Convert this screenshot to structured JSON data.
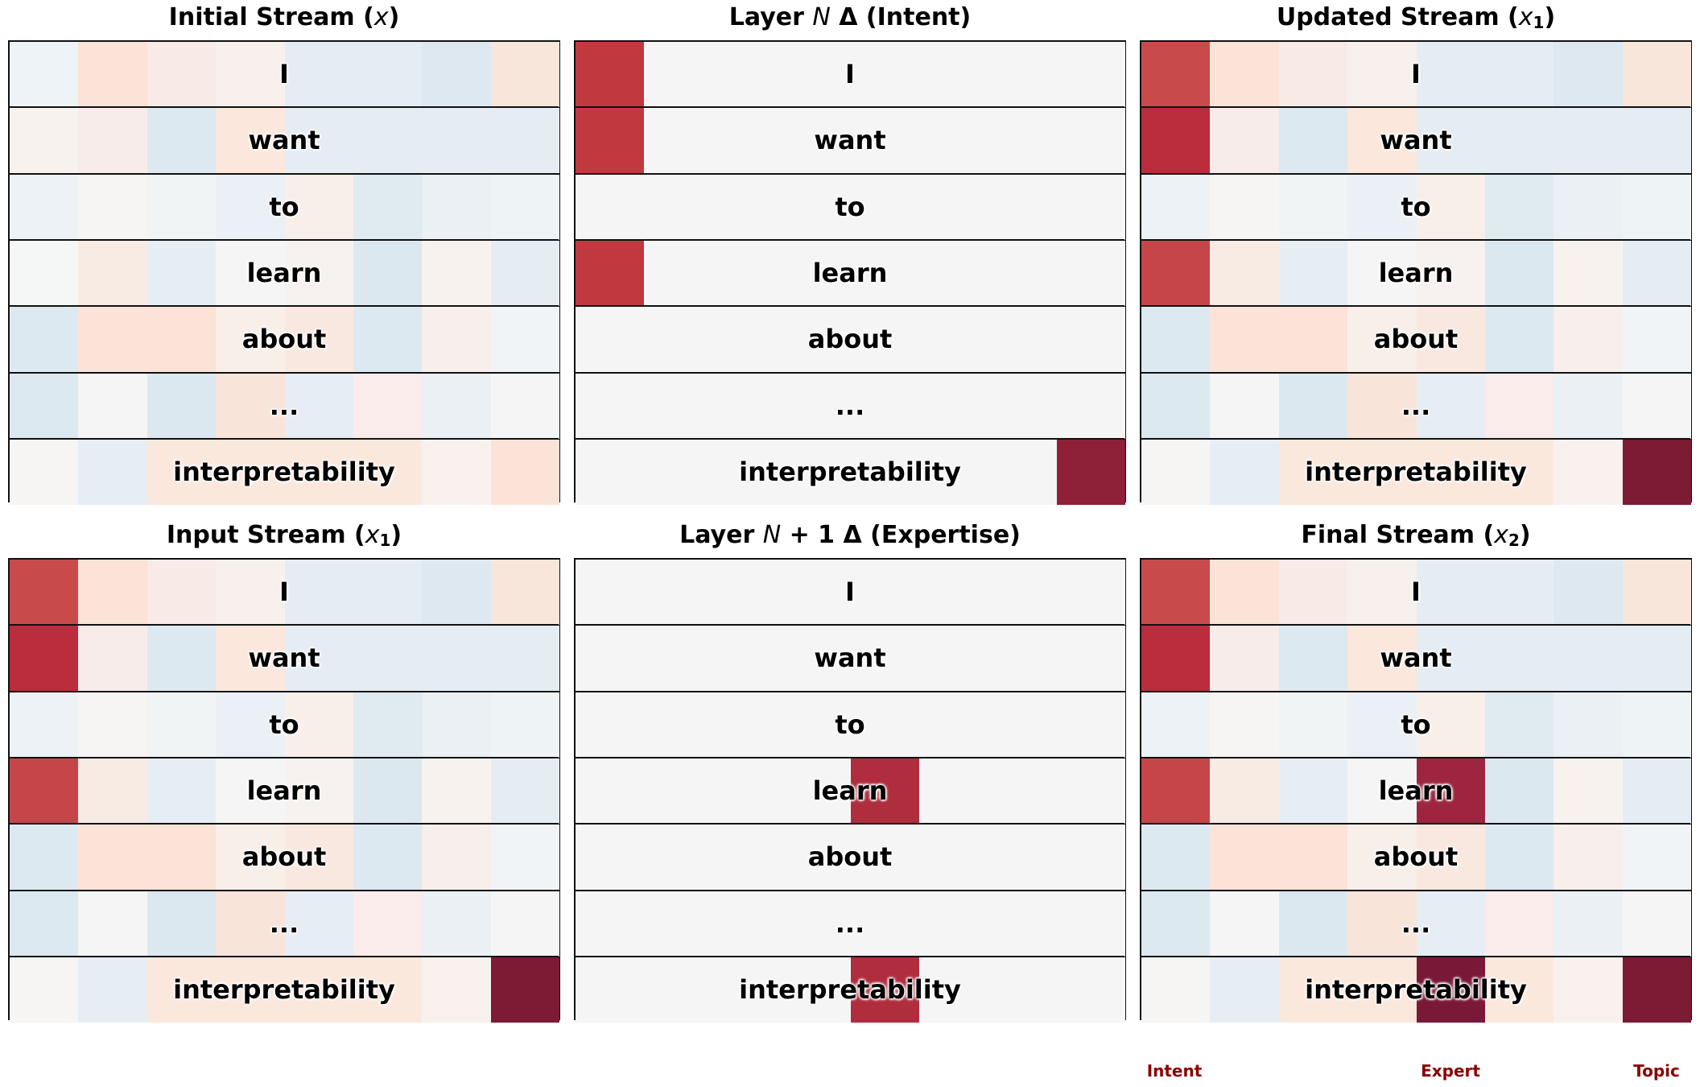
{
  "tokens": [
    "I",
    "want",
    "to",
    "learn",
    "about",
    "...",
    "interpretability"
  ],
  "panels": [
    {
      "id": "initial",
      "title_text": "Initial Stream (",
      "title_var": "x",
      "title_sub": "",
      "title_end": ")",
      "cells": [
        [
          "#eef3f7",
          "#fbe3d7",
          "#f8ebe7",
          "#f8f0ec",
          "#e5edf4",
          "#e5edf4",
          "#dde8f0",
          "#f9e6da"
        ],
        [
          "#f8f2ef",
          "#f8ecea",
          "#dde9f0",
          "#fbe7db",
          "#e5edf4",
          "#e5edf4",
          "#e5edf4",
          "#e5edf4"
        ],
        [
          "#edf2f6",
          "#f6f5f3",
          "#f1f4f5",
          "#eaf0f5",
          "#f8efe9",
          "#e0eaf1",
          "#eaf0f4",
          "#eef3f6"
        ],
        [
          "#f5f6f6",
          "#f8ebe4",
          "#e6eef5",
          "#f5f5f5",
          "#f7f2ef",
          "#dbe8f0",
          "#f8f2ef",
          "#e5edf4"
        ],
        [
          "#dde9f0",
          "#fbe3d7",
          "#fbe3d7",
          "#f8efe9",
          "#f9e8df",
          "#dde9f0",
          "#f8eeeb",
          "#f1f4f6"
        ],
        [
          "#dde9f0",
          "#f5f5f5",
          "#dbe8f0",
          "#f9e4da",
          "#e6edf5",
          "#f9ecea",
          "#eaf0f4",
          "#f5f5f5"
        ],
        [
          "#f6f5f4",
          "#e6edf5",
          "#fbe8dd",
          "#fbe8dd",
          "#fbe8dd",
          "#fbe8dd",
          "#f9f1ee",
          "#fbe3d7"
        ]
      ]
    },
    {
      "id": "layerN",
      "title_text": "Layer ",
      "title_var": "N",
      "title_sub": "",
      "title_end": " Δ (Intent)",
      "cells": [
        [
          "#c0393f",
          "#f5f5f5",
          "#f5f5f5",
          "#f5f5f5",
          "#f5f5f5",
          "#f5f5f5",
          "#f5f5f5",
          "#f5f5f5"
        ],
        [
          "#c0393f",
          "#f5f5f5",
          "#f5f5f5",
          "#f5f5f5",
          "#f5f5f5",
          "#f5f5f5",
          "#f5f5f5",
          "#f5f5f5"
        ],
        [
          "#f5f5f5",
          "#f5f5f5",
          "#f5f5f5",
          "#f5f5f5",
          "#f5f5f5",
          "#f5f5f5",
          "#f5f5f5",
          "#f5f5f5"
        ],
        [
          "#c0393f",
          "#f5f5f5",
          "#f5f5f5",
          "#f5f5f5",
          "#f5f5f5",
          "#f5f5f5",
          "#f5f5f5",
          "#f5f5f5"
        ],
        [
          "#f5f5f5",
          "#f5f5f5",
          "#f5f5f5",
          "#f5f5f5",
          "#f5f5f5",
          "#f5f5f5",
          "#f5f5f5",
          "#f5f5f5"
        ],
        [
          "#f5f5f5",
          "#f5f5f5",
          "#f5f5f5",
          "#f5f5f5",
          "#f5f5f5",
          "#f5f5f5",
          "#f5f5f5",
          "#f5f5f5"
        ],
        [
          "#f5f5f5",
          "#f5f5f5",
          "#f5f5f5",
          "#f5f5f5",
          "#f5f5f5",
          "#f5f5f5",
          "#f5f5f5",
          "#8e2038"
        ]
      ]
    },
    {
      "id": "updated",
      "title_text": "Updated Stream (",
      "title_var": "x",
      "title_sub": "1",
      "title_end": ")",
      "cells": [
        [
          "#c84a4a",
          "#fbe3d7",
          "#f8ebe7",
          "#f8f0ec",
          "#e5edf4",
          "#e5edf4",
          "#dde8f0",
          "#f9e6da"
        ],
        [
          "#bb2c3c",
          "#f8ecea",
          "#dde9f0",
          "#fbe7db",
          "#e5edf4",
          "#e5edf4",
          "#e5edf4",
          "#e5edf4"
        ],
        [
          "#edf2f6",
          "#f6f5f3",
          "#f1f4f5",
          "#eaf0f5",
          "#f8efe9",
          "#e0eaf1",
          "#eaf0f4",
          "#eef3f6"
        ],
        [
          "#c64548",
          "#f8ebe4",
          "#e6eef5",
          "#f5f5f5",
          "#f7f2ef",
          "#dbe8f0",
          "#f8f2ef",
          "#e5edf4"
        ],
        [
          "#dde9f0",
          "#fbe3d7",
          "#fbe3d7",
          "#f8efe9",
          "#f9e8df",
          "#dde9f0",
          "#f8eeeb",
          "#f1f4f6"
        ],
        [
          "#dde9f0",
          "#f5f5f5",
          "#dbe8f0",
          "#f9e4da",
          "#e6edf5",
          "#f9ecea",
          "#eaf0f4",
          "#f5f5f5"
        ],
        [
          "#f6f5f4",
          "#e6edf5",
          "#fbe8dd",
          "#fbe8dd",
          "#fbe8dd",
          "#fbe8dd",
          "#f9f1ee",
          "#7d1a34"
        ]
      ]
    },
    {
      "id": "input",
      "title_text": "Input Stream (",
      "title_var": "x",
      "title_sub": "1",
      "title_end": ")",
      "cells": [
        [
          "#c84a4a",
          "#fbe3d7",
          "#f8ebe7",
          "#f8f0ec",
          "#e5edf4",
          "#e5edf4",
          "#dde8f0",
          "#f9e6da"
        ],
        [
          "#bb2c3c",
          "#f8ecea",
          "#dde9f0",
          "#fbe7db",
          "#e5edf4",
          "#e5edf4",
          "#e5edf4",
          "#e5edf4"
        ],
        [
          "#edf2f6",
          "#f6f5f3",
          "#f1f4f5",
          "#eaf0f5",
          "#f8efe9",
          "#e0eaf1",
          "#eaf0f4",
          "#eef3f6"
        ],
        [
          "#c64548",
          "#f8ebe4",
          "#e6eef5",
          "#f5f5f5",
          "#f7f2ef",
          "#dbe8f0",
          "#f8f2ef",
          "#e5edf4"
        ],
        [
          "#dde9f0",
          "#fbe3d7",
          "#fbe3d7",
          "#f8efe9",
          "#f9e8df",
          "#dde9f0",
          "#f8eeeb",
          "#f1f4f6"
        ],
        [
          "#dde9f0",
          "#f5f5f5",
          "#dbe8f0",
          "#f9e4da",
          "#e6edf5",
          "#f9ecea",
          "#eaf0f4",
          "#f5f5f5"
        ],
        [
          "#f6f5f4",
          "#e6edf5",
          "#fbe8dd",
          "#fbe8dd",
          "#fbe8dd",
          "#fbe8dd",
          "#f9f1ee",
          "#7d1a34"
        ]
      ]
    },
    {
      "id": "layerN1",
      "title_text": "Layer ",
      "title_var": "N",
      "title_sub": "",
      "title_end": " + 1 Δ (Expertise)",
      "cells": [
        [
          "#f5f5f5",
          "#f5f5f5",
          "#f5f5f5",
          "#f5f5f5",
          "#f5f5f5",
          "#f5f5f5",
          "#f5f5f5",
          "#f5f5f5"
        ],
        [
          "#f5f5f5",
          "#f5f5f5",
          "#f5f5f5",
          "#f5f5f5",
          "#f5f5f5",
          "#f5f5f5",
          "#f5f5f5",
          "#f5f5f5"
        ],
        [
          "#f5f5f5",
          "#f5f5f5",
          "#f5f5f5",
          "#f5f5f5",
          "#f5f5f5",
          "#f5f5f5",
          "#f5f5f5",
          "#f5f5f5"
        ],
        [
          "#f5f5f5",
          "#f5f5f5",
          "#f5f5f5",
          "#f5f5f5",
          "#b02d3e",
          "#f5f5f5",
          "#f5f5f5",
          "#f5f5f5"
        ],
        [
          "#f5f5f5",
          "#f5f5f5",
          "#f5f5f5",
          "#f5f5f5",
          "#f5f5f5",
          "#f5f5f5",
          "#f5f5f5",
          "#f5f5f5"
        ],
        [
          "#f5f5f5",
          "#f5f5f5",
          "#f5f5f5",
          "#f5f5f5",
          "#f5f5f5",
          "#f5f5f5",
          "#f5f5f5",
          "#f5f5f5"
        ],
        [
          "#f5f5f5",
          "#f5f5f5",
          "#f5f5f5",
          "#f5f5f5",
          "#b02d3e",
          "#f5f5f5",
          "#f5f5f5",
          "#f5f5f5"
        ]
      ]
    },
    {
      "id": "final",
      "title_text": "Final Stream (",
      "title_var": "x",
      "title_sub": "2",
      "title_end": ")",
      "cells": [
        [
          "#c84a4a",
          "#fbe3d7",
          "#f8ebe7",
          "#f8f0ec",
          "#e5edf4",
          "#e5edf4",
          "#dde8f0",
          "#f9e6da"
        ],
        [
          "#bb2c3c",
          "#f8ecea",
          "#dde9f0",
          "#fbe7db",
          "#e5edf4",
          "#e5edf4",
          "#e5edf4",
          "#e5edf4"
        ],
        [
          "#edf2f6",
          "#f6f5f3",
          "#f1f4f5",
          "#eaf0f5",
          "#f8efe9",
          "#e0eaf1",
          "#eaf0f4",
          "#eef3f6"
        ],
        [
          "#c64548",
          "#f8ebe4",
          "#e6eef5",
          "#f5f5f5",
          "#9e2540",
          "#dbe8f0",
          "#f8f2ef",
          "#e5edf4"
        ],
        [
          "#dde9f0",
          "#fbe3d7",
          "#fbe3d7",
          "#f8efe9",
          "#f9e8df",
          "#dde9f0",
          "#f8eeeb",
          "#f1f4f6"
        ],
        [
          "#dde9f0",
          "#f5f5f5",
          "#dbe8f0",
          "#f9e4da",
          "#e6edf5",
          "#f9ecea",
          "#eaf0f4",
          "#f5f5f5"
        ],
        [
          "#f6f5f4",
          "#e6edf5",
          "#fbe8dd",
          "#fbe8dd",
          "#7a1838",
          "#fbe8dd",
          "#f9f1ee",
          "#7d1a34"
        ]
      ]
    }
  ],
  "legend": {
    "labels": [
      "Intent",
      "Expert",
      "Topic"
    ],
    "color": "#8b0000"
  }
}
